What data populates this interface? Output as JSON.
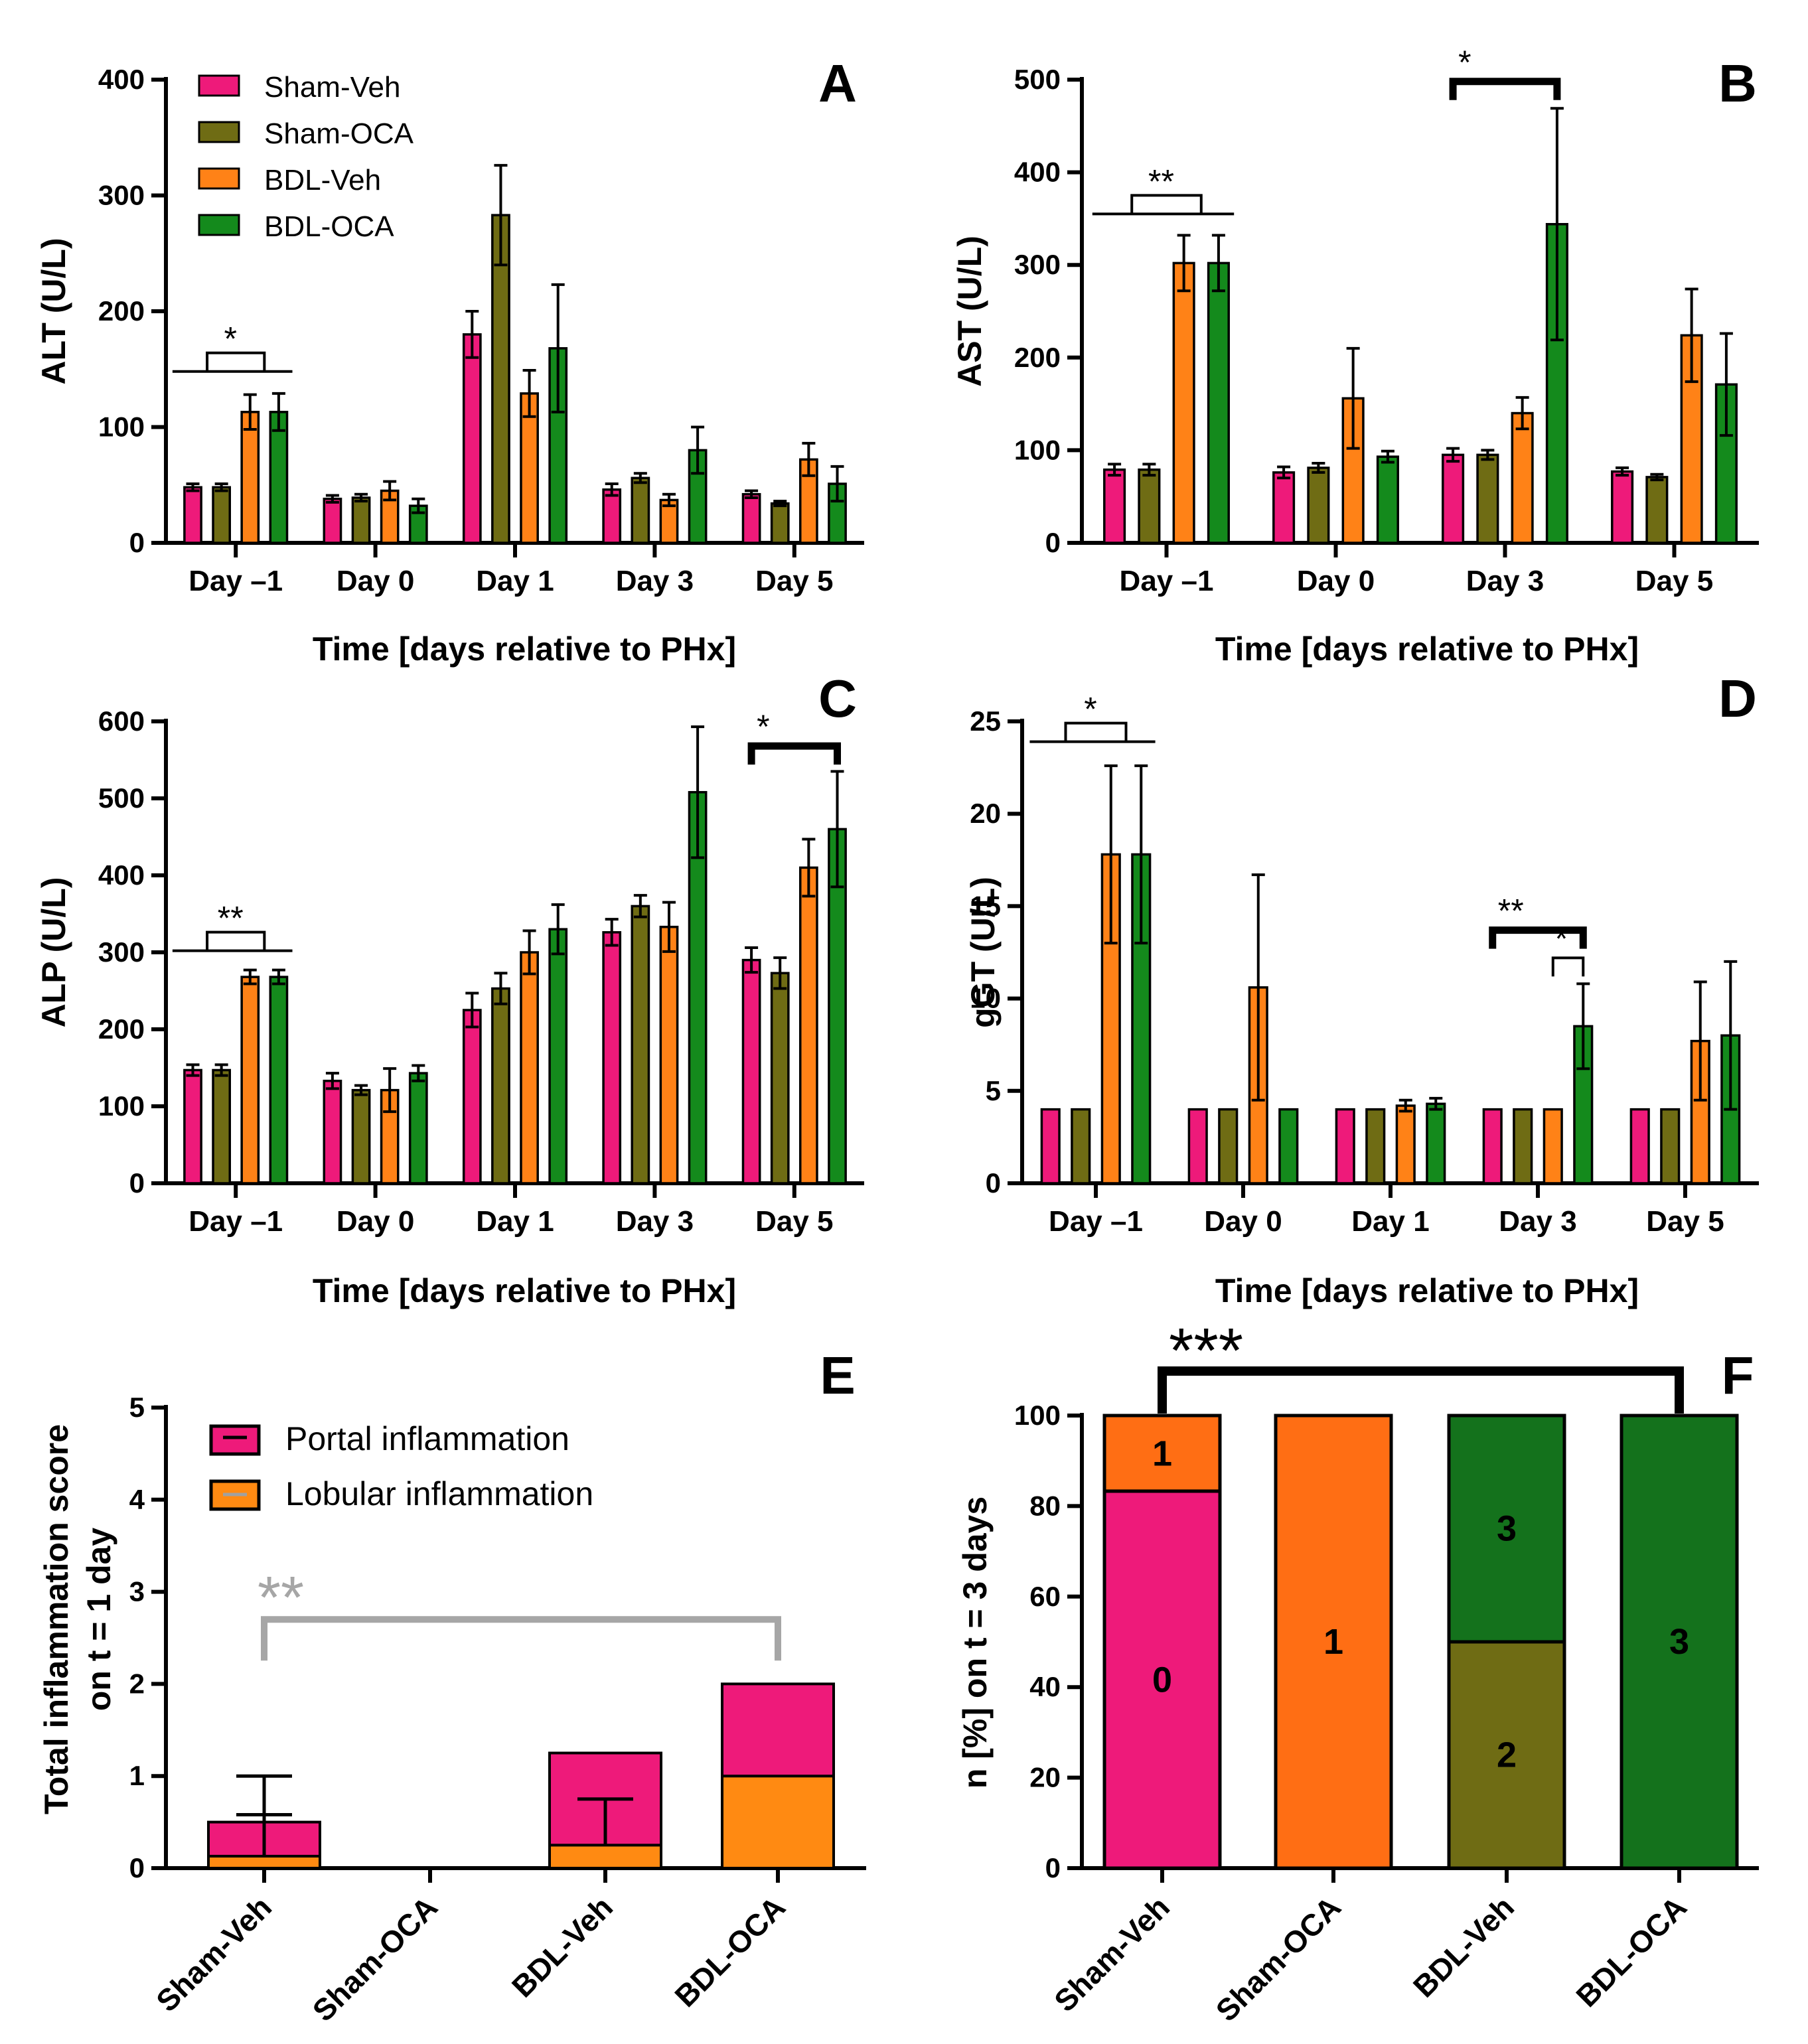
{
  "colors": {
    "sham_veh": "#ee1a7a",
    "sham_oca": "#6f6c14",
    "bdl_veh": "#ff8217",
    "bdl_oca": "#148a1c",
    "f_orange": "#ff6e14",
    "f_pink": "#ee1a7a",
    "f_olive": "#6f6c14",
    "f_green": "#14721c",
    "e_portal": "#ee1a7a",
    "e_lobular": "#ff8a12",
    "gray_sig": "#a6a6a6"
  },
  "legend_groups": [
    "Sham-Veh",
    "Sham-OCA",
    "BDL-Veh",
    "BDL-OCA"
  ],
  "chart_data": [
    {
      "type": "bar",
      "panel_letter": "A",
      "ylabel": "ALT (U/L)",
      "xlabel": "Time [days relative to PHx]",
      "categories": [
        "Day –1",
        "Day 0",
        "Day 1",
        "Day 3",
        "Day 5"
      ],
      "ylim": [
        0,
        400
      ],
      "yticks": [
        "0",
        "100",
        "200",
        "300",
        "400"
      ],
      "series": [
        {
          "name": "Sham-Veh",
          "values": [
            48,
            38,
            180,
            46,
            42
          ],
          "errors": [
            3,
            3,
            20,
            5,
            3
          ]
        },
        {
          "name": "Sham-OCA",
          "values": [
            48,
            39,
            283,
            56,
            34
          ],
          "errors": [
            3,
            3,
            43,
            4,
            2
          ]
        },
        {
          "name": "BDL-Veh",
          "values": [
            113,
            45,
            129,
            37,
            72
          ],
          "errors": [
            15,
            8,
            20,
            5,
            14
          ]
        },
        {
          "name": "BDL-OCA",
          "values": [
            113,
            32,
            168,
            80,
            51
          ],
          "errors": [
            16,
            6,
            55,
            20,
            15
          ]
        }
      ],
      "significance": [
        {
          "label": "*",
          "type": "group",
          "cat": 0,
          "from": [
            0,
            1
          ],
          "to": [
            2,
            3
          ],
          "level": 148
        }
      ]
    },
    {
      "type": "bar",
      "panel_letter": "B",
      "ylabel": "AST (U/L)",
      "xlabel": "Time [days relative to PHx]",
      "categories": [
        "Day –1",
        "Day 0",
        "Day 3",
        "Day 5"
      ],
      "ylim": [
        0,
        500
      ],
      "yticks": [
        "0",
        "100",
        "200",
        "300",
        "400",
        "500"
      ],
      "series": [
        {
          "name": "Sham-Veh",
          "values": [
            79,
            76,
            95,
            77
          ],
          "errors": [
            6,
            6,
            7,
            4
          ]
        },
        {
          "name": "Sham-OCA",
          "values": [
            79,
            81,
            95,
            71
          ],
          "errors": [
            6,
            5,
            5,
            3
          ]
        },
        {
          "name": "BDL-Veh",
          "values": [
            302,
            156,
            140,
            224
          ],
          "errors": [
            30,
            54,
            17,
            50
          ]
        },
        {
          "name": "BDL-OCA",
          "values": [
            302,
            93,
            344,
            171
          ],
          "errors": [
            30,
            6,
            125,
            55
          ]
        }
      ],
      "significance": [
        {
          "label": "**",
          "type": "group",
          "cat": 0,
          "from": [
            0,
            1
          ],
          "to": [
            2,
            3
          ],
          "level": 355
        },
        {
          "label": "*",
          "type": "bracket",
          "cat": 2,
          "from": 0,
          "to": 3,
          "level": 498
        }
      ]
    },
    {
      "type": "bar",
      "panel_letter": "C",
      "ylabel": "ALP (U/L)",
      "xlabel": "Time [days relative to PHx]",
      "categories": [
        "Day –1",
        "Day 0",
        "Day 1",
        "Day 3",
        "Day 5"
      ],
      "ylim": [
        0,
        600
      ],
      "yticks": [
        "0",
        "100",
        "200",
        "300",
        "400",
        "500",
        "600"
      ],
      "series": [
        {
          "name": "Sham-Veh",
          "values": [
            147,
            133,
            225,
            326,
            290
          ],
          "errors": [
            7,
            10,
            22,
            17,
            16
          ]
        },
        {
          "name": "Sham-OCA",
          "values": [
            147,
            121,
            253,
            360,
            273
          ],
          "errors": [
            7,
            6,
            20,
            14,
            20
          ]
        },
        {
          "name": "BDL-Veh",
          "values": [
            268,
            121,
            300,
            333,
            410
          ],
          "errors": [
            9,
            28,
            28,
            32,
            37
          ]
        },
        {
          "name": "BDL-OCA",
          "values": [
            268,
            143,
            330,
            508,
            460
          ],
          "errors": [
            9,
            10,
            32,
            85,
            75
          ]
        }
      ],
      "significance": [
        {
          "label": "**",
          "type": "group",
          "cat": 0,
          "from": [
            0,
            1
          ],
          "to": [
            2,
            3
          ],
          "level": 302
        },
        {
          "label": "*",
          "type": "bracket",
          "cat": 4,
          "from": 0,
          "to": 3,
          "level": 568
        }
      ]
    },
    {
      "type": "bar",
      "panel_letter": "D",
      "ylabel": "gGT (U/L)",
      "xlabel": "Time [days relative to PHx]",
      "categories": [
        "Day –1",
        "Day 0",
        "Day 1",
        "Day 3",
        "Day 5"
      ],
      "ylim": [
        0,
        25
      ],
      "yticks": [
        "0",
        "5",
        "10",
        "15",
        "20",
        "25"
      ],
      "series": [
        {
          "name": "Sham-Veh",
          "values": [
            4,
            4,
            4,
            4,
            4
          ],
          "errors": [
            0,
            0,
            0,
            0,
            0
          ]
        },
        {
          "name": "Sham-OCA",
          "values": [
            4,
            4,
            4,
            4,
            4
          ],
          "errors": [
            0,
            0,
            0,
            0,
            0
          ]
        },
        {
          "name": "BDL-Veh",
          "values": [
            17.8,
            10.6,
            4.2,
            4,
            7.7
          ],
          "errors": [
            4.8,
            6.1,
            0.3,
            0,
            3.2
          ]
        },
        {
          "name": "BDL-OCA",
          "values": [
            17.8,
            4,
            4.3,
            8.5,
            8
          ],
          "errors": [
            4.8,
            0,
            0.3,
            2.3,
            4
          ]
        }
      ],
      "significance": [
        {
          "label": "*",
          "type": "group",
          "cat": 0,
          "from": [
            0,
            1
          ],
          "to": [
            2,
            3
          ],
          "level": 23.9
        },
        {
          "label": "**",
          "type": "bracket",
          "cat": 3,
          "from": 0,
          "to": 3,
          "level": 13.7
        },
        {
          "label": "*",
          "type": "bracket",
          "cat": 3,
          "from": 2,
          "to": 3,
          "level": 12.2
        }
      ]
    },
    {
      "type": "stacked-bar",
      "panel_letter": "E",
      "ylabel_line1": "Total inflammation score",
      "ylabel_line2": "on t = 1 day",
      "categories": [
        "Sham-Veh",
        "Sham-OCA",
        "BDL-Veh",
        "BDL-OCA"
      ],
      "ylim": [
        0,
        5
      ],
      "yticks": [
        "0",
        "1",
        "2",
        "3",
        "4",
        "5"
      ],
      "series": [
        {
          "name": "Lobular inflammation",
          "values": [
            0.13,
            0,
            0.25,
            1.0
          ],
          "errors": [
            0.45,
            0,
            0.5,
            0
          ]
        },
        {
          "name": "Portal inflammation",
          "values": [
            0.37,
            0,
            1.0,
            1.0
          ],
          "errors": [
            0.5,
            0,
            0,
            0
          ]
        }
      ],
      "legend": [
        "Portal inflammation",
        "Lobular inflammation"
      ],
      "significance": [
        {
          "label": "**",
          "from": 0,
          "to": 3,
          "level": 2.7
        }
      ]
    },
    {
      "type": "stacked-bar",
      "panel_letter": "F",
      "ylabel": "n [%] on t = 3 days",
      "categories": [
        "Sham-Veh",
        "Sham-OCA",
        "BDL-Veh",
        "BDL-OCA"
      ],
      "ylim": [
        0,
        100
      ],
      "yticks": [
        "0",
        "20",
        "40",
        "60",
        "80",
        "100"
      ],
      "series": [
        {
          "name": "score 0",
          "values": [
            83.3,
            0,
            0,
            0
          ]
        },
        {
          "name": "score 1",
          "values": [
            16.7,
            100,
            0,
            0
          ]
        },
        {
          "name": "score 2",
          "values": [
            0,
            0,
            50,
            0
          ]
        },
        {
          "name": "score 3",
          "values": [
            0,
            0,
            50,
            100
          ]
        }
      ],
      "segment_labels": [
        "0",
        "1",
        "1",
        "2",
        "3",
        "3"
      ],
      "significance": [
        {
          "label": "***",
          "from": 0,
          "to": 3
        }
      ]
    }
  ]
}
